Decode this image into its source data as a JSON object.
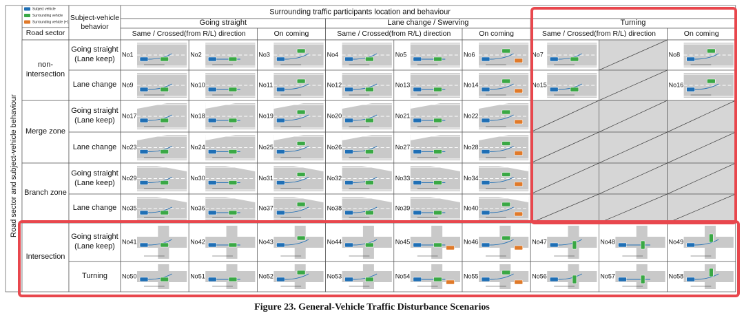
{
  "legend": [
    "Subject vehicle",
    "Surrounding vehicle",
    "Surrounding vehicle (+1)"
  ],
  "header": {
    "title": "Surrounding traffic participants location and behaviour",
    "road_sector": "Road sector",
    "subject_behavior": "Subject-vehicle behavior",
    "row_axis": "Road sector and subject-vehicle behaviour",
    "groups": [
      "Going straight",
      "Lane change / Swerving",
      "Turning"
    ],
    "subgroups": [
      "Same / Crossed(from R/L) direction",
      "On coming",
      "Same / Crossed(from R/L) direction",
      "On coming",
      "Same / Crossed(from R/L) direction",
      "On coming"
    ]
  },
  "sectors": [
    {
      "name": "non-intersection",
      "rows": [
        {
          "behavior": "Going straight (Lane keep)",
          "cells": [
            "No1",
            "No2",
            "No3",
            "No4",
            "No5",
            "No6",
            "No7",
            null,
            "No8"
          ]
        },
        {
          "behavior": "Lane change",
          "cells": [
            "No9",
            "No10",
            "No11",
            "No12",
            "No13",
            "No14",
            "No15",
            null,
            "No16"
          ]
        }
      ]
    },
    {
      "name": "Merge zone",
      "rows": [
        {
          "behavior": "Going straight (Lane keep)",
          "cells": [
            "No17",
            "No18",
            "No19",
            "No20",
            "No21",
            "No22",
            null,
            null,
            null
          ]
        },
        {
          "behavior": "Lane change",
          "cells": [
            "No23",
            "No24",
            "No25",
            "No26",
            "No27",
            "No28",
            null,
            null,
            null
          ]
        }
      ]
    },
    {
      "name": "Branch zone",
      "rows": [
        {
          "behavior": "Going straight (Lane keep)",
          "cells": [
            "No29",
            "No30",
            "No31",
            "No32",
            "No33",
            "No34",
            null,
            null,
            null
          ]
        },
        {
          "behavior": "Lane change",
          "cells": [
            "No35",
            "No36",
            "No37",
            "No38",
            "No39",
            "No40",
            null,
            null,
            null
          ]
        }
      ]
    },
    {
      "name": "Intersection",
      "rows": [
        {
          "behavior": "Going straight (Lane keep)",
          "cells": [
            "No41",
            "No42",
            "No43",
            "No44",
            "No45",
            "No46",
            "No47",
            "No48",
            "No49"
          ]
        },
        {
          "behavior": "Turning",
          "cells": [
            "No50",
            "No51",
            "No52",
            "No53",
            "No54",
            "No55",
            "No56",
            "No57",
            "No58"
          ]
        }
      ]
    }
  ],
  "caption": "Figure 23. General-Vehicle Traffic Disturbance Scenarios"
}
